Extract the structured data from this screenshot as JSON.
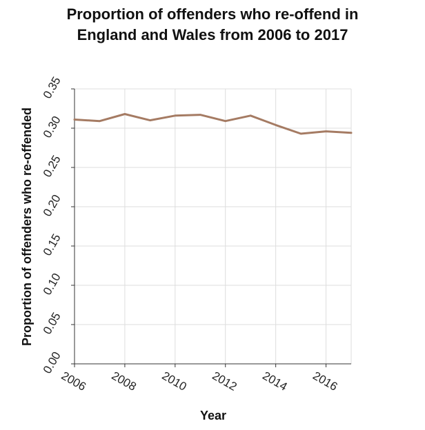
{
  "chart_data": {
    "type": "line",
    "title_lines": [
      "Proportion of offenders who re-offend in",
      "England and Wales from 2006 to 2017"
    ],
    "xlabel": "Year",
    "ylabel": "Proportion of offenders who re-offended",
    "xlim": [
      2006,
      2017
    ],
    "ylim": [
      0,
      0.35
    ],
    "x_ticks": [
      2006,
      2008,
      2010,
      2012,
      2014,
      2016
    ],
    "x_tick_labels": [
      "2006",
      "2008",
      "2010",
      "2012",
      "2014",
      "2016"
    ],
    "y_ticks": [
      0,
      0.05,
      0.1,
      0.15,
      0.2,
      0.25,
      0.3,
      0.35
    ],
    "y_tick_labels": [
      "0.00",
      "0.05",
      "0.10",
      "0.15",
      "0.20",
      "0.25",
      "0.30",
      "0.35"
    ],
    "grid": true,
    "series": [
      {
        "x": [
          2006,
          2007,
          2008,
          2009,
          2010,
          2011,
          2012,
          2013,
          2014,
          2015,
          2016,
          2017
        ],
        "values": [
          0.311,
          0.309,
          0.318,
          0.31,
          0.316,
          0.317,
          0.309,
          0.316,
          0.304,
          0.293,
          0.296,
          0.294
        ],
        "color": "#a57b63"
      }
    ]
  }
}
